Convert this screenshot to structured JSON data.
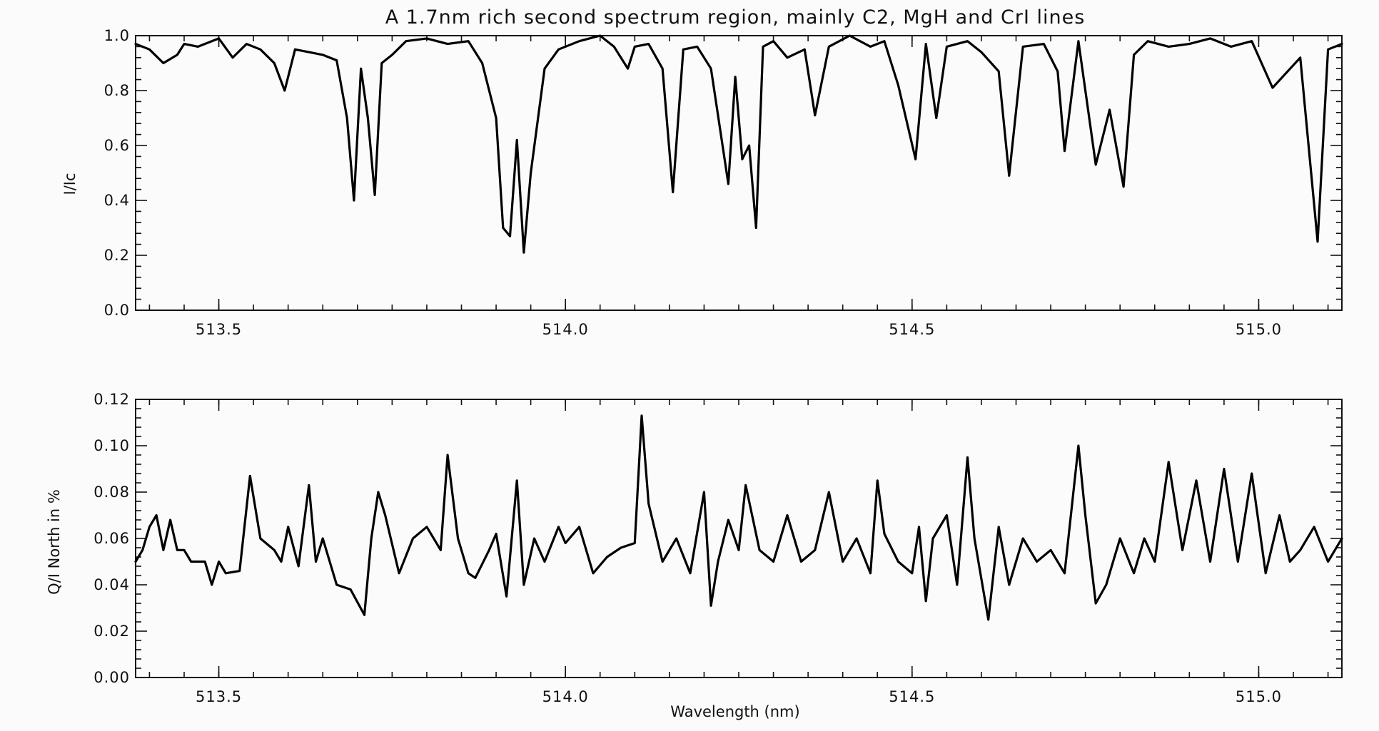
{
  "title": "A 1.7nm rich second spectrum region, mainly C2, MgH and CrI lines",
  "chart_data": [
    {
      "type": "line",
      "ylabel": "I/Ic",
      "xlabel": "",
      "xlim": [
        513.38,
        515.12
      ],
      "ylim": [
        0.0,
        1.0
      ],
      "x_ticks": [
        513.5,
        514.0,
        514.5,
        515.0
      ],
      "x_tick_labels": [
        "513.5",
        "514.0",
        "514.5",
        "515.0"
      ],
      "y_ticks": [
        0.0,
        0.2,
        0.4,
        0.6,
        0.8,
        1.0
      ],
      "y_tick_labels": [
        "0.0",
        "0.2",
        "0.4",
        "0.6",
        "0.8",
        "1.0"
      ],
      "grid": false,
      "series": [
        {
          "color": "#000000",
          "x": [
            513.38,
            513.4,
            513.42,
            513.44,
            513.45,
            513.47,
            513.5,
            513.52,
            513.54,
            513.56,
            513.58,
            513.595,
            513.61,
            513.63,
            513.65,
            513.67,
            513.685,
            513.695,
            513.705,
            513.715,
            513.725,
            513.735,
            513.75,
            513.77,
            513.8,
            513.83,
            513.86,
            513.88,
            513.9,
            513.91,
            513.92,
            513.93,
            513.94,
            513.95,
            513.97,
            513.99,
            514.02,
            514.05,
            514.07,
            514.09,
            514.1,
            514.12,
            514.14,
            514.155,
            514.17,
            514.19,
            514.21,
            514.235,
            514.245,
            514.255,
            514.265,
            514.275,
            514.285,
            514.3,
            514.32,
            514.345,
            514.36,
            514.38,
            514.41,
            514.44,
            514.46,
            514.48,
            514.505,
            514.52,
            514.535,
            514.55,
            514.58,
            514.6,
            514.625,
            514.64,
            514.66,
            514.69,
            514.71,
            514.72,
            514.74,
            514.765,
            514.785,
            514.805,
            514.82,
            514.84,
            514.87,
            514.9,
            514.93,
            514.96,
            514.99,
            515.02,
            515.06,
            515.085,
            515.1,
            515.12
          ],
          "values": [
            0.97,
            0.95,
            0.9,
            0.93,
            0.97,
            0.96,
            0.99,
            0.92,
            0.97,
            0.95,
            0.9,
            0.8,
            0.95,
            0.94,
            0.93,
            0.91,
            0.7,
            0.4,
            0.88,
            0.7,
            0.42,
            0.9,
            0.93,
            0.98,
            0.99,
            0.97,
            0.98,
            0.9,
            0.7,
            0.3,
            0.27,
            0.62,
            0.21,
            0.5,
            0.88,
            0.95,
            0.98,
            1.0,
            0.96,
            0.88,
            0.96,
            0.97,
            0.88,
            0.43,
            0.95,
            0.96,
            0.88,
            0.46,
            0.85,
            0.55,
            0.6,
            0.3,
            0.96,
            0.98,
            0.92,
            0.95,
            0.71,
            0.96,
            1.0,
            0.96,
            0.98,
            0.82,
            0.55,
            0.97,
            0.7,
            0.96,
            0.98,
            0.94,
            0.87,
            0.49,
            0.96,
            0.97,
            0.87,
            0.58,
            0.98,
            0.53,
            0.73,
            0.45,
            0.93,
            0.98,
            0.96,
            0.97,
            0.99,
            0.96,
            0.98,
            0.81,
            0.92,
            0.25,
            0.95,
            0.97
          ]
        }
      ]
    },
    {
      "type": "line",
      "ylabel": "Q/I North in %",
      "xlabel": "Wavelength (nm)",
      "xlim": [
        513.38,
        515.12
      ],
      "ylim": [
        0.0,
        0.12
      ],
      "x_ticks": [
        513.5,
        514.0,
        514.5,
        515.0
      ],
      "x_tick_labels": [
        "513.5",
        "514.0",
        "514.5",
        "515.0"
      ],
      "y_ticks": [
        0.0,
        0.02,
        0.04,
        0.06,
        0.08,
        0.1,
        0.12
      ],
      "y_tick_labels": [
        "0.00",
        "0.02",
        "0.04",
        "0.06",
        "0.08",
        "0.10",
        "0.12"
      ],
      "grid": false,
      "series": [
        {
          "color": "#000000",
          "x": [
            513.38,
            513.39,
            513.4,
            513.41,
            513.42,
            513.43,
            513.44,
            513.45,
            513.46,
            513.48,
            513.49,
            513.5,
            513.51,
            513.53,
            513.545,
            513.56,
            513.58,
            513.59,
            513.6,
            513.615,
            513.63,
            513.64,
            513.65,
            513.67,
            513.69,
            513.71,
            513.72,
            513.73,
            513.74,
            513.76,
            513.78,
            513.8,
            513.82,
            513.83,
            513.845,
            513.86,
            513.87,
            513.89,
            513.9,
            513.915,
            513.93,
            513.94,
            513.955,
            513.97,
            513.99,
            514.0,
            514.02,
            514.04,
            514.06,
            514.08,
            514.1,
            514.11,
            514.12,
            514.14,
            514.16,
            514.18,
            514.2,
            514.21,
            514.22,
            514.235,
            514.25,
            514.26,
            514.28,
            514.3,
            514.32,
            514.34,
            514.36,
            514.38,
            514.4,
            514.42,
            514.44,
            514.45,
            514.46,
            514.48,
            514.5,
            514.51,
            514.52,
            514.53,
            514.55,
            514.565,
            514.58,
            514.59,
            514.61,
            514.625,
            514.64,
            514.66,
            514.68,
            514.7,
            514.72,
            514.74,
            514.75,
            514.765,
            514.78,
            514.8,
            514.82,
            514.835,
            514.85,
            514.87,
            514.89,
            514.91,
            514.93,
            514.95,
            514.97,
            514.99,
            515.01,
            515.03,
            515.045,
            515.06,
            515.08,
            515.1,
            515.12
          ],
          "values": [
            0.05,
            0.055,
            0.065,
            0.07,
            0.055,
            0.068,
            0.055,
            0.055,
            0.05,
            0.05,
            0.04,
            0.05,
            0.045,
            0.046,
            0.087,
            0.06,
            0.055,
            0.05,
            0.065,
            0.048,
            0.083,
            0.05,
            0.06,
            0.04,
            0.038,
            0.027,
            0.06,
            0.08,
            0.07,
            0.045,
            0.06,
            0.065,
            0.055,
            0.096,
            0.06,
            0.045,
            0.043,
            0.055,
            0.062,
            0.035,
            0.085,
            0.04,
            0.06,
            0.05,
            0.065,
            0.058,
            0.065,
            0.045,
            0.052,
            0.056,
            0.058,
            0.113,
            0.075,
            0.05,
            0.06,
            0.045,
            0.08,
            0.031,
            0.05,
            0.068,
            0.055,
            0.083,
            0.055,
            0.05,
            0.07,
            0.05,
            0.055,
            0.08,
            0.05,
            0.06,
            0.045,
            0.085,
            0.062,
            0.05,
            0.045,
            0.065,
            0.033,
            0.06,
            0.07,
            0.04,
            0.095,
            0.06,
            0.025,
            0.065,
            0.04,
            0.06,
            0.05,
            0.055,
            0.045,
            0.1,
            0.07,
            0.032,
            0.04,
            0.06,
            0.045,
            0.06,
            0.05,
            0.093,
            0.055,
            0.085,
            0.05,
            0.09,
            0.05,
            0.088,
            0.045,
            0.07,
            0.05,
            0.055,
            0.065,
            0.05,
            0.06
          ]
        }
      ]
    }
  ]
}
